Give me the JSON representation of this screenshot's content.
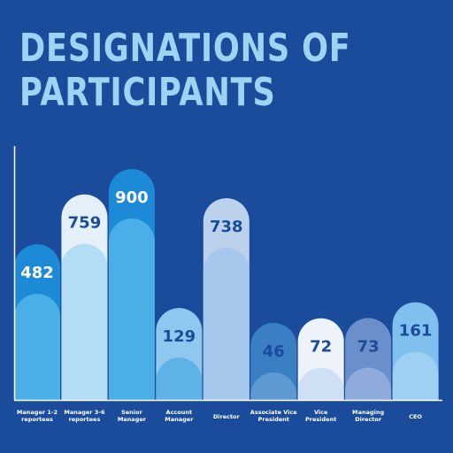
{
  "title_lines": [
    "DESIGNATIONS OF",
    "PARTICIPANTS"
  ],
  "chart_data": {
    "type": "bar",
    "categories": [
      [
        "Manager 1-2",
        "reportees"
      ],
      [
        "Manager 3-6",
        "reportees"
      ],
      [
        "Senior",
        "Manager"
      ],
      [
        "Account",
        "Manager"
      ],
      [
        "Director"
      ],
      [
        "Associate Vice",
        "President"
      ],
      [
        "Vice",
        "President"
      ],
      [
        "Managing",
        "Director"
      ],
      [
        "CEO"
      ]
    ],
    "values": [
      482,
      759,
      900,
      129,
      738,
      46,
      72,
      73,
      161
    ],
    "ylim": [
      0,
      900
    ],
    "colors": {
      "background": "#1b4c9c",
      "axis": "#ffffff",
      "label_text": "#ffffff",
      "bars": [
        {
          "cap": "#1d8ad8",
          "body": "#4aafe6",
          "text": "#ffffff"
        },
        {
          "cap": "#e4f1fb",
          "body": "#b3dcf5",
          "text": "#1b4c9c"
        },
        {
          "cap": "#1d8ad8",
          "body": "#4aafe6",
          "text": "#ffffff"
        },
        {
          "cap": "#8ec8ef",
          "body": "#5fb2e8",
          "text": "#1b4c9c"
        },
        {
          "cap": "#bcd2ec",
          "body": "#a6c8ec",
          "text": "#1b4c9c"
        },
        {
          "cap": "#3a7ec4",
          "body": "#5d9ad4",
          "text": "#1b4c9c"
        },
        {
          "cap": "#eef2fa",
          "body": "#cfe0f4",
          "text": "#1b4c9c"
        },
        {
          "cap": "#6a8fcb",
          "body": "#8fabdb",
          "text": "#1b4c9c"
        },
        {
          "cap": "#7fc0ee",
          "body": "#9dd0f2",
          "text": "#1b4c9c"
        }
      ]
    }
  }
}
